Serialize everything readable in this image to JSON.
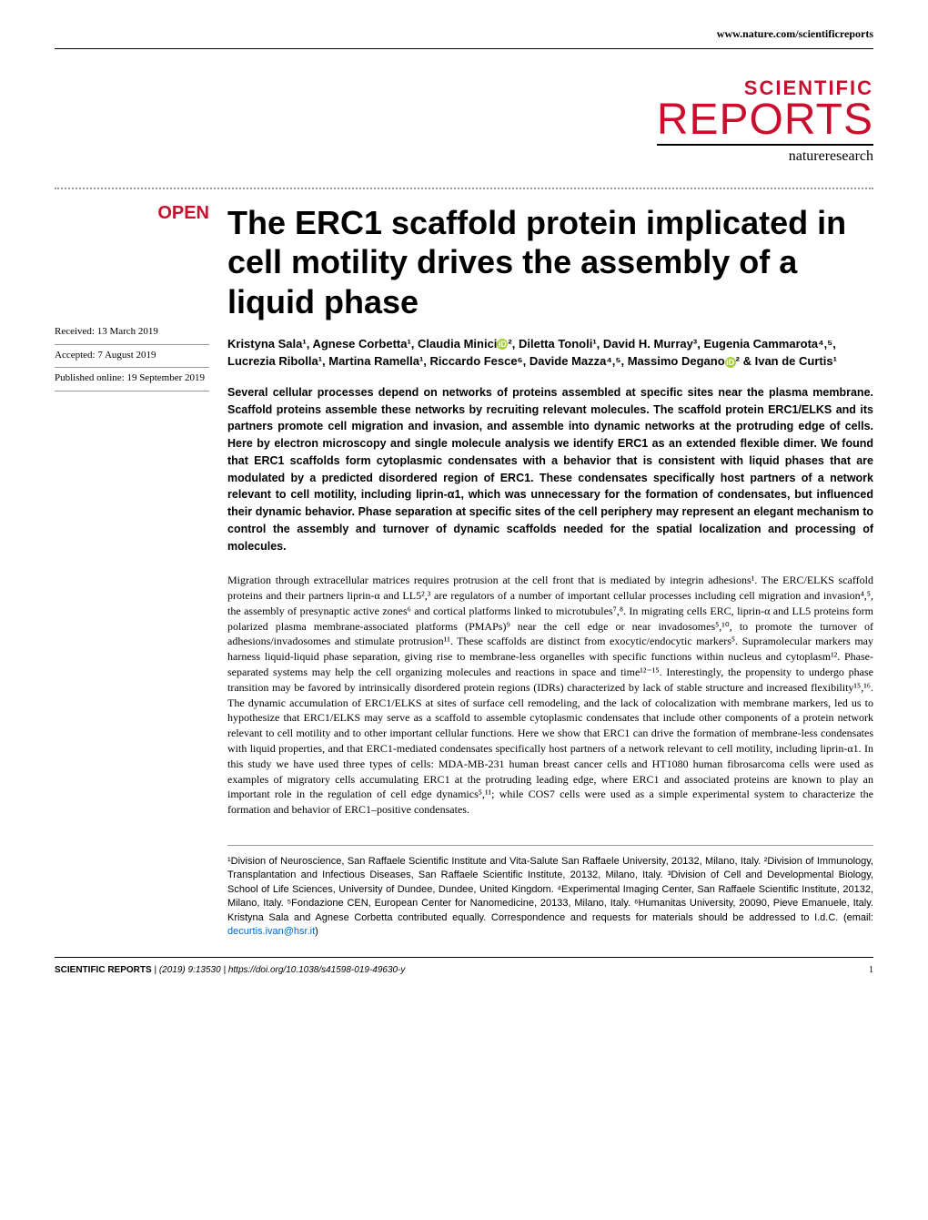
{
  "header": {
    "url": "www.nature.com/scientificreports"
  },
  "journal": {
    "scientific": "SCIENTIFIC",
    "reports": "REPORTS",
    "nature": "natureresearch"
  },
  "badge": {
    "open": "OPEN"
  },
  "dates": {
    "received": "Received: 13 March 2019",
    "accepted": "Accepted: 7 August 2019",
    "published": "Published online: 19 September 2019"
  },
  "title": "The ERC1 scaffold protein implicated in cell motility drives the assembly of a liquid phase",
  "authors": {
    "line1": "Kristyna Sala¹, Agnese Corbetta¹, Claudia Minici",
    "line1b": "², Diletta Tonoli¹, David H. Murray³,",
    "line2": "Eugenia Cammarota⁴,⁵, Lucrezia Ribolla¹, Martina Ramella¹, Riccardo Fesce⁶,",
    "line3": "Davide Mazza⁴,⁵, Massimo Degano",
    "line3b": "² & Ivan de Curtis¹"
  },
  "abstract": "Several cellular processes depend on networks of proteins assembled at specific sites near the plasma membrane. Scaffold proteins assemble these networks by recruiting relevant molecules. The scaffold protein ERC1/ELKS and its partners promote cell migration and invasion, and assemble into dynamic networks at the protruding edge of cells. Here by electron microscopy and single molecule analysis we identify ERC1 as an extended flexible dimer. We found that ERC1 scaffolds form cytoplasmic condensates with a behavior that is consistent with liquid phases that are modulated by a predicted disordered region of ERC1. These condensates specifically host partners of a network relevant to cell motility, including liprin-α1, which was unnecessary for the formation of condensates, but influenced their dynamic behavior. Phase separation at specific sites of the cell periphery may represent an elegant mechanism to control the assembly and turnover of dynamic scaffolds needed for the spatial localization and processing of molecules.",
  "body_text": "Migration through extracellular matrices requires protrusion at the cell front that is mediated by integrin adhesions¹. The ERC/ELKS scaffold proteins and their partners liprin-α and LL5²,³ are regulators of a number of important cellular processes including cell migration and invasion⁴,⁵, the assembly of presynaptic active zones⁶ and cortical platforms linked to microtubules⁷,⁸. In migrating cells ERC, liprin-α and LL5 proteins form polarized plasma membrane-associated platforms (PMAPs)⁹ near the cell edge or near invadosomes⁵,¹⁰, to promote the turnover of adhesions/invadosomes and stimulate protrusion¹¹. These scaffolds are distinct from exocytic/endocytic markers⁵. Supramolecular markers may harness liquid-liquid phase separation, giving rise to membrane-less organelles with specific functions within nucleus and cytoplasm¹². Phase-separated systems may help the cell organizing molecules and reactions in space and time¹²⁻¹⁵. Interestingly, the propensity to undergo phase transition may be favored by intrinsically disordered protein regions (IDRs) characterized by lack of stable structure and increased flexibility¹⁵,¹⁶. The dynamic accumulation of ERC1/ELKS at sites of surface cell remodeling, and the lack of colocalization with membrane markers, led us to hypothesize that ERC1/ELKS may serve as a scaffold to assemble cytoplasmic condensates that include other components of a protein network relevant to cell motility and to other important cellular functions. Here we show that ERC1 can drive the formation of membrane-less condensates with liquid properties, and that ERC1-mediated condensates specifically host partners of a network relevant to cell motility, including liprin-α1. In this study we have used three types of cells: MDA-MB-231 human breast cancer cells and HT1080 human fibrosarcoma cells were used as examples of migratory cells accumulating ERC1 at the protruding leading edge, where ERC1 and associated proteins are known to play an important role in the regulation of cell edge dynamics⁵,¹¹; while COS7 cells were used as a simple experimental system to characterize the formation and behavior of ERC1–positive condensates.",
  "affiliations": "¹Division of Neuroscience, San Raffaele Scientific Institute and Vita-Salute San Raffaele University, 20132, Milano, Italy. ²Division of Immunology, Transplantation and Infectious Diseases, San Raffaele Scientific Institute, 20132, Milano, Italy. ³Division of Cell and Developmental Biology, School of Life Sciences, University of Dundee, Dundee, United Kingdom. ⁴Experimental Imaging Center, San Raffaele Scientific Institute, 20132, Milano, Italy. ⁵Fondazione CEN, European Center for Nanomedicine, 20133, Milano, Italy. ⁶Humanitas University, 20090, Pieve Emanuele, Italy. Kristyna Sala and Agnese Corbetta contributed equally. Correspondence and requests for materials should be addressed to I.d.C. (email: ",
  "email": "decurtis.ivan@hsr.it",
  "affiliations_end": ")",
  "footer": {
    "journal": "SCIENTIFIC REPORTS",
    "citation": "(2019) 9:13530 | https://doi.org/10.1038/s41598-019-49630-y",
    "page": "1"
  },
  "colors": {
    "red": "#c8102e",
    "link": "#0066cc",
    "orcid": "#a6ce39"
  }
}
